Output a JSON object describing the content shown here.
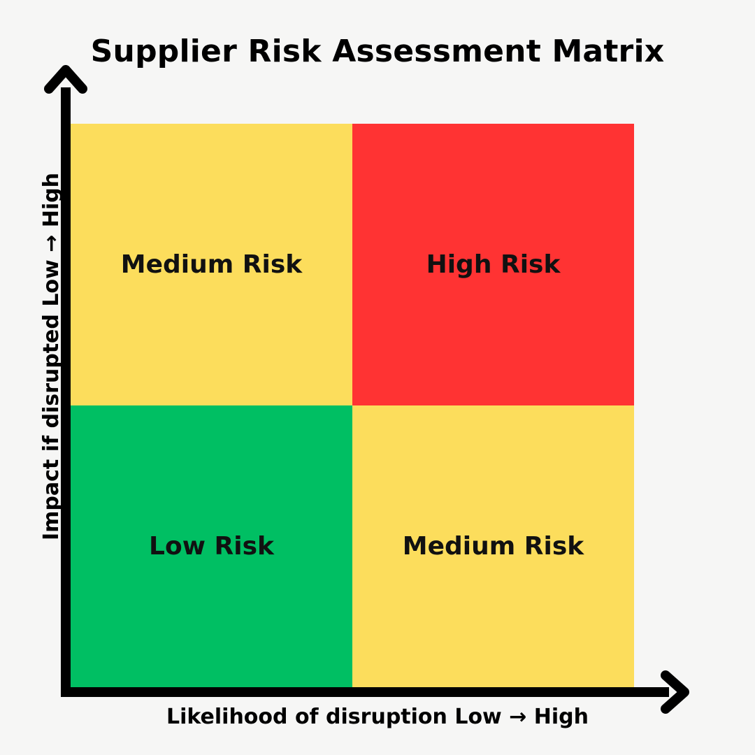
{
  "title": "Supplier Risk Assessment Matrix",
  "x_axis_label": "Likelihood of disruption Low → High",
  "y_axis_label": "Impact if disrupted Low → High",
  "quadrants": {
    "top_left": {
      "label": "Medium Risk",
      "color": "#fcdd5c"
    },
    "top_right": {
      "label": "High Risk",
      "color": "#ff3333"
    },
    "bottom_left": {
      "label": "Low Risk",
      "color": "#00bf63"
    },
    "bottom_right": {
      "label": "Medium Risk",
      "color": "#fcdd5c"
    }
  },
  "axis_color": "#000000",
  "background_color": "#f6f6f5"
}
